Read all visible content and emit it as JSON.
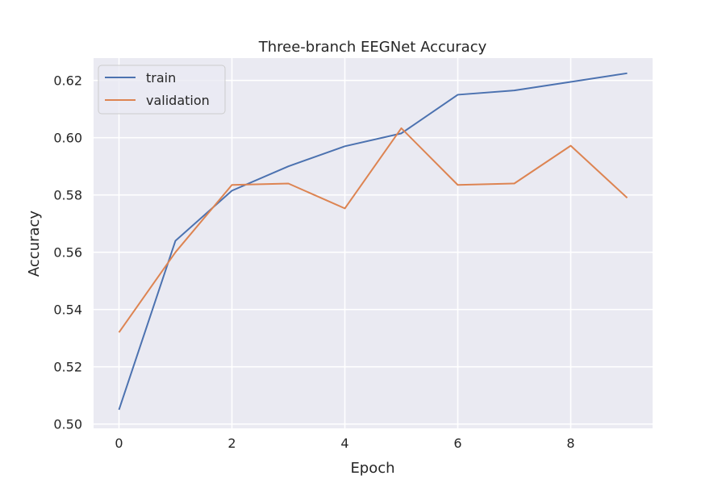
{
  "chart_data": {
    "type": "line",
    "title": "Three-branch EEGNet Accuracy",
    "xlabel": "Epoch",
    "ylabel": "Accuracy",
    "xlim": [
      -0.45,
      9.45
    ],
    "ylim": [
      0.4985,
      0.6278
    ],
    "xticks": [
      0,
      2,
      4,
      6,
      8
    ],
    "yticks": [
      0.5,
      0.52,
      0.54,
      0.56,
      0.58,
      0.6,
      0.62
    ],
    "grid": true,
    "legend": "upper-left",
    "x": [
      0,
      1,
      2,
      3,
      4,
      5,
      6,
      7,
      8,
      9
    ],
    "series": [
      {
        "name": "train",
        "color": "#4c72b0",
        "values": [
          0.505,
          0.564,
          0.5815,
          0.59,
          0.597,
          0.6015,
          0.615,
          0.6165,
          0.6195,
          0.6225
        ]
      },
      {
        "name": "validation",
        "color": "#dd8452",
        "values": [
          0.532,
          0.56,
          0.5835,
          0.584,
          0.5753,
          0.6033,
          0.5835,
          0.584,
          0.5972,
          0.579
        ]
      }
    ]
  }
}
